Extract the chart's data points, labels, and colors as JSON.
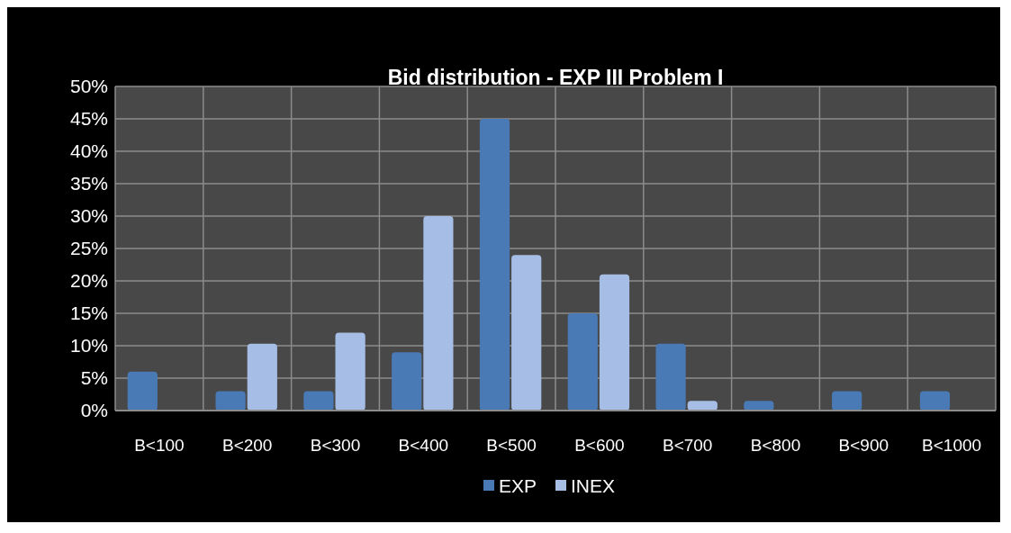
{
  "chart_data": {
    "type": "bar",
    "title": "Bid distribution - EXP III Problem I",
    "categories": [
      "B<100",
      "B<200",
      "B<300",
      "B<400",
      "B<500",
      "B<600",
      "B<700",
      "B<800",
      "B<900",
      "B<1000"
    ],
    "series": [
      {
        "name": "EXP",
        "color": "#4a7ab5",
        "values": [
          6,
          3,
          3,
          9,
          45,
          15,
          10.3,
          1.5,
          3,
          3
        ]
      },
      {
        "name": "INEX",
        "color": "#a6bde6",
        "values": [
          0,
          10.3,
          12,
          30,
          24,
          21,
          1.5,
          0,
          0,
          0
        ]
      }
    ],
    "ylim": [
      0,
      50
    ],
    "yticks": [
      {
        "value": 0,
        "label": "0%"
      },
      {
        "value": 5,
        "label": "5%"
      },
      {
        "value": 10,
        "label": "10%"
      },
      {
        "value": 15,
        "label": "15%"
      },
      {
        "value": 20,
        "label": "20%"
      },
      {
        "value": 25,
        "label": "25%"
      },
      {
        "value": 30,
        "label": "30%"
      },
      {
        "value": 35,
        "label": "35%"
      },
      {
        "value": 40,
        "label": "40%"
      },
      {
        "value": 45,
        "label": "45%"
      },
      {
        "value": 50,
        "label": "50%"
      }
    ],
    "grid": true,
    "legend": "bottom"
  }
}
